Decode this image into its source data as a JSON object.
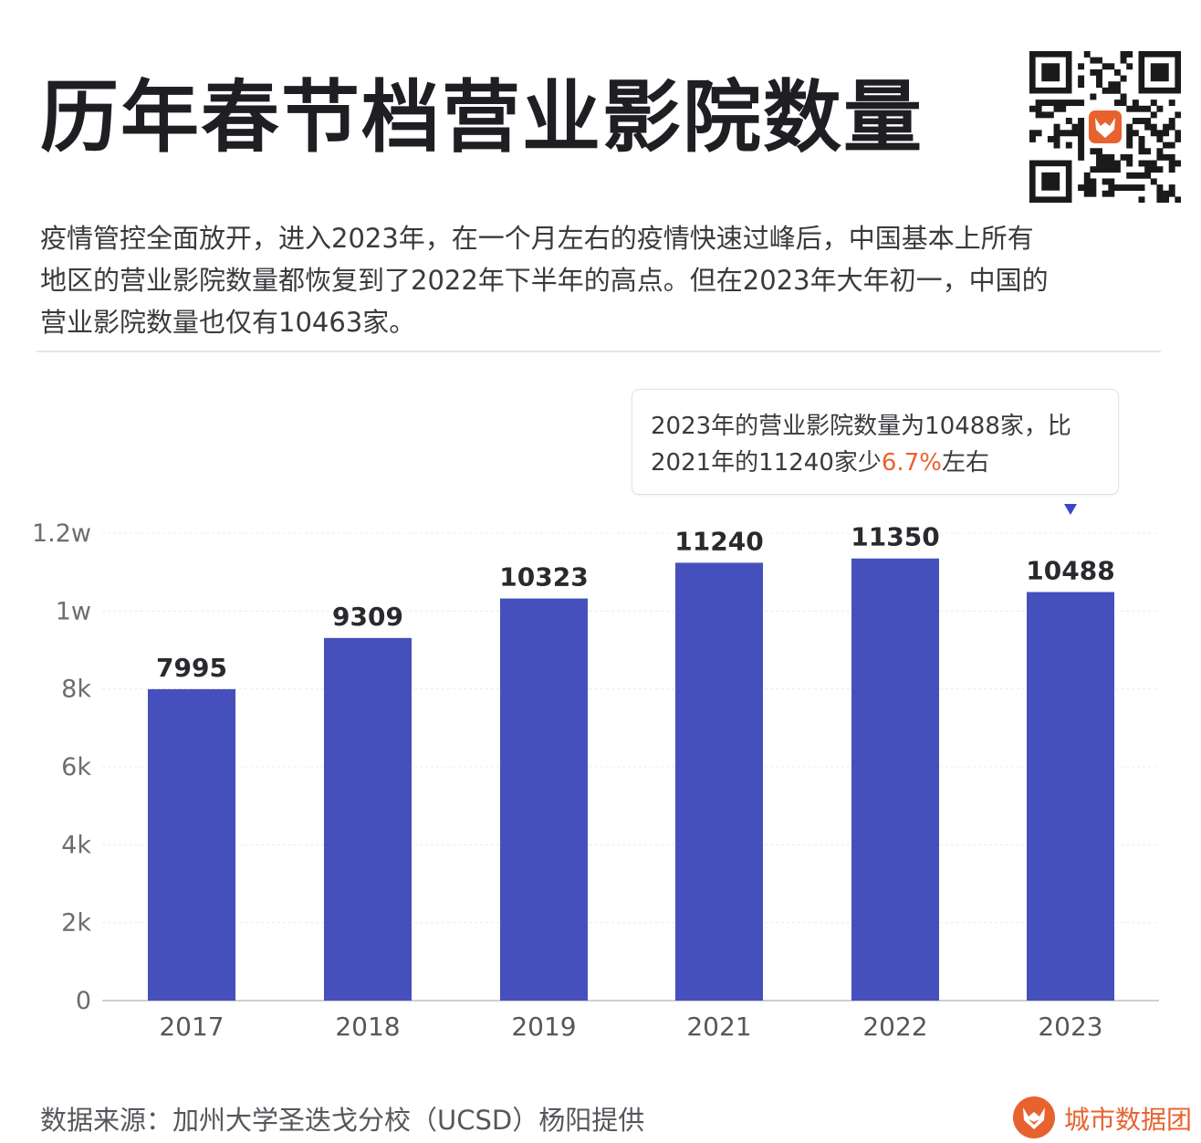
{
  "header": {
    "title": "历年春节档营业影院数量"
  },
  "qr_code": {
    "icon": "qr-code-icon"
  },
  "description": {
    "lines": [
      "疫情管控全面放开，进入2023年，在一个月左右的疫情快速过峰后，中国基本上所有",
      "地区的营业影院数量都恢复到了2022年下半年的高点。但在2023年大年初一，中国的",
      "营业影院数量也仅有10463家。"
    ]
  },
  "callout": {
    "line1": "2023年的营业影院数量为10488家，比",
    "line2_prefix": "2021年的11240家少",
    "line2_highlight": "6.7%",
    "line2_suffix": "左右",
    "marker_icon": "triangle-down-icon",
    "highlight_color": "#e8622f"
  },
  "chart_data": {
    "type": "bar",
    "categories": [
      "2017",
      "2018",
      "2019",
      "2021",
      "2022",
      "2023"
    ],
    "values": [
      7995,
      9309,
      10323,
      11240,
      11350,
      10488
    ],
    "data_labels": [
      "7995",
      "9309",
      "10323",
      "11240",
      "11350",
      "10488"
    ],
    "ylim": [
      0,
      12000
    ],
    "yticks": [
      0,
      2000,
      4000,
      6000,
      8000,
      10000,
      12000
    ],
    "ytick_labels": [
      "0",
      "2k",
      "4k",
      "6k",
      "8k",
      "1w",
      "1.2w"
    ],
    "grid": true,
    "bar_color": "#4550bd",
    "xlabel": "",
    "ylabel": ""
  },
  "footer": {
    "source": "数据来源：加州大学圣迭戈分校（UCSD）杨阳提供",
    "brand_name": "城市数据团",
    "brand_color": "#e8622f",
    "brand_icon": "fox-logo-icon"
  }
}
